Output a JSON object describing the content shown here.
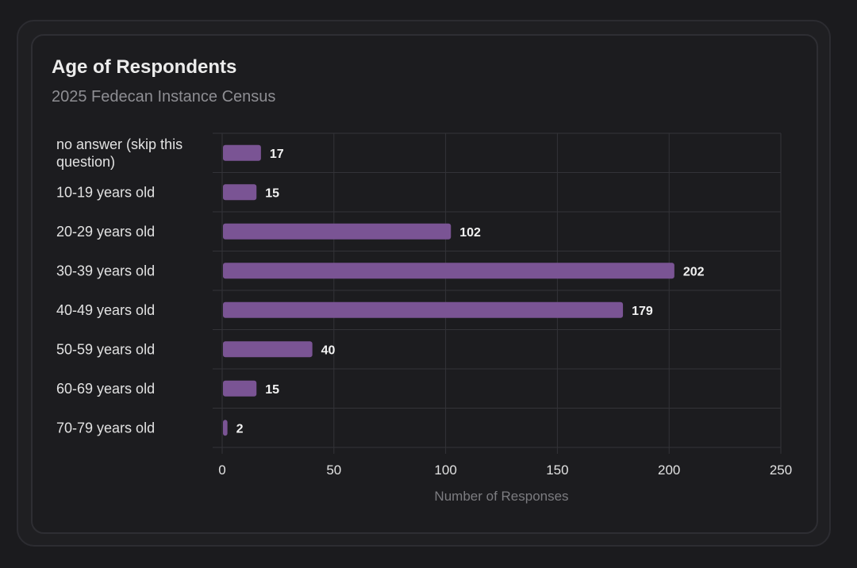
{
  "card": {
    "title": "Age of Respondents",
    "subtitle": "2025 Fedecan Instance Census"
  },
  "colors": {
    "bar": "#7a5494",
    "grid": "#333338",
    "background": "#1c1c1f"
  },
  "chart_data": {
    "type": "bar",
    "orientation": "horizontal",
    "title": "Age of Respondents",
    "subtitle": "2025 Fedecan Instance Census",
    "categories": [
      [
        "no answer (skip this",
        "question)"
      ],
      [
        "10-19 years old"
      ],
      [
        "20-29 years old"
      ],
      [
        "30-39 years old"
      ],
      [
        "40-49 years old"
      ],
      [
        "50-59 years old"
      ],
      [
        "60-69 years old"
      ],
      [
        "70-79 years old"
      ]
    ],
    "values": [
      17,
      15,
      102,
      202,
      179,
      40,
      15,
      2
    ],
    "xlabel": "Number of Responses",
    "ylabel": "",
    "xlim": [
      0,
      250
    ],
    "xticks": [
      0,
      50,
      100,
      150,
      200,
      250
    ],
    "grid": true,
    "data_labels": true
  }
}
